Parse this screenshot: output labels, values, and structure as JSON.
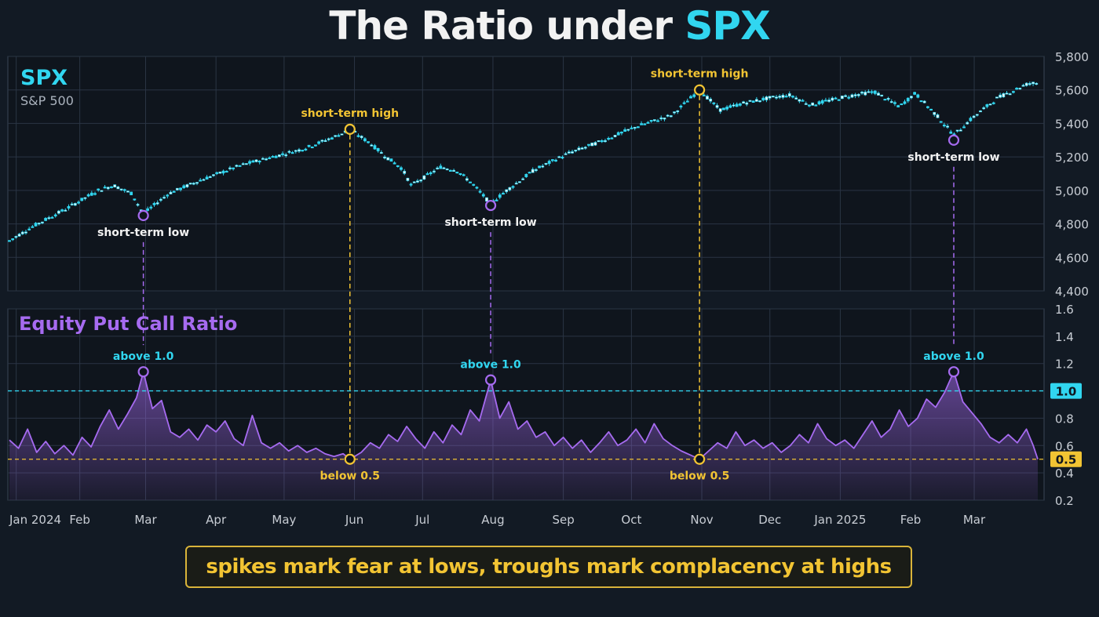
{
  "title": {
    "prefix": "The Ratio under ",
    "highlight": "SPX"
  },
  "caption": "spikes mark fear at lows, troughs mark complacency at highs",
  "colors": {
    "background": "#121a24",
    "grid": "#2a3544",
    "spx_candle": "#31d6f0",
    "ratio_line": "#a66bf0",
    "low_marker": "#a66bf0",
    "high_marker": "#f2c433",
    "threshold_high": "#31d6f0",
    "threshold_low": "#f2c433",
    "text_primary": "#f2f2f2",
    "text_muted": "#aab2bd"
  },
  "chart_data": [
    {
      "type": "candlestick",
      "title": "SPX",
      "subtitle": "S&P 500",
      "y_ticks": [
        4400,
        4600,
        4800,
        5000,
        5200,
        5400,
        5600,
        5800
      ],
      "y_tick_labels": [
        "4,400",
        "4,600",
        "4,800",
        "5,000",
        "5,200",
        "5,400",
        "5,600",
        "5,800"
      ],
      "ylim": [
        4400,
        5800
      ],
      "grid": true,
      "price_path": [
        [
          "2024-01-01",
          4700
        ],
        [
          "2024-01-12",
          4790
        ],
        [
          "2024-01-26",
          4890
        ],
        [
          "2024-02-09",
          5000
        ],
        [
          "2024-02-16",
          5030
        ],
        [
          "2024-02-24",
          4980
        ],
        [
          "2024-02-29",
          4860
        ],
        [
          "2024-03-11",
          4980
        ],
        [
          "2024-03-25",
          5060
        ],
        [
          "2024-04-12",
          5150
        ],
        [
          "2024-04-26",
          5200
        ],
        [
          "2024-05-10",
          5250
        ],
        [
          "2024-05-25",
          5330
        ],
        [
          "2024-05-30",
          5365
        ],
        [
          "2024-06-08",
          5280
        ],
        [
          "2024-06-15",
          5200
        ],
        [
          "2024-06-22",
          5130
        ],
        [
          "2024-06-26",
          5030
        ],
        [
          "2024-07-02",
          5080
        ],
        [
          "2024-07-09",
          5140
        ],
        [
          "2024-07-16",
          5120
        ],
        [
          "2024-07-23",
          5040
        ],
        [
          "2024-07-31",
          4920
        ],
        [
          "2024-08-07",
          5000
        ],
        [
          "2024-08-19",
          5120
        ],
        [
          "2024-09-03",
          5220
        ],
        [
          "2024-09-19",
          5300
        ],
        [
          "2024-10-03",
          5380
        ],
        [
          "2024-10-19",
          5450
        ],
        [
          "2024-10-31",
          5600
        ],
        [
          "2024-11-09",
          5480
        ],
        [
          "2024-11-19",
          5520
        ],
        [
          "2024-11-30",
          5550
        ],
        [
          "2024-12-10",
          5570
        ],
        [
          "2024-12-19",
          5510
        ],
        [
          "2025-01-03",
          5560
        ],
        [
          "2025-01-16",
          5590
        ],
        [
          "2025-01-27",
          5500
        ],
        [
          "2025-02-03",
          5580
        ],
        [
          "2025-02-13",
          5440
        ],
        [
          "2025-02-20",
          5330
        ],
        [
          "2025-02-28",
          5430
        ],
        [
          "2025-03-11",
          5550
        ],
        [
          "2025-03-25",
          5640
        ]
      ],
      "annotations": [
        {
          "label": "short-term low",
          "date": "2024-02-29",
          "value": 4850,
          "kind": "low"
        },
        {
          "label": "short-term high",
          "date": "2024-05-30",
          "value": 5365,
          "kind": "high"
        },
        {
          "label": "short-term low",
          "date": "2024-07-31",
          "value": 4910,
          "kind": "low"
        },
        {
          "label": "short-term high",
          "date": "2024-10-31",
          "value": 5600,
          "kind": "high"
        },
        {
          "label": "short-term low",
          "date": "2025-02-20",
          "value": 5300,
          "kind": "low"
        }
      ]
    },
    {
      "type": "area",
      "title": "Equity Put Call Ratio",
      "y_ticks": [
        0.2,
        0.4,
        0.6,
        0.8,
        1.0,
        1.2,
        1.4,
        1.6
      ],
      "y_tick_labels": [
        "0.2",
        "0.4",
        "0.6",
        "0.8",
        "1.0",
        "1.2",
        "1.4",
        "1.6"
      ],
      "ylim": [
        0.2,
        1.6
      ],
      "grid": true,
      "thresholds": [
        {
          "value": 1.0,
          "label": "1.0",
          "color": "#31d6f0"
        },
        {
          "value": 0.5,
          "label": "0.5",
          "color": "#f2c433"
        }
      ],
      "x_ticks": [
        [
          "2024-01-04",
          "Jan 2024"
        ],
        [
          "2024-02-01",
          "Feb"
        ],
        [
          "2024-03-01",
          "Mar"
        ],
        [
          "2024-04-01",
          "Apr"
        ],
        [
          "2024-05-01",
          "May"
        ],
        [
          "2024-06-01",
          "Jun"
        ],
        [
          "2024-07-01",
          "Jul"
        ],
        [
          "2024-08-01",
          "Aug"
        ],
        [
          "2024-09-01",
          "Sep"
        ],
        [
          "2024-10-01",
          "Oct"
        ],
        [
          "2024-11-01",
          "Nov"
        ],
        [
          "2024-12-01",
          "Dec"
        ],
        [
          "2025-01-01",
          "Jan 2025"
        ],
        [
          "2025-02-01",
          "Feb"
        ],
        [
          "2025-03-01",
          "Mar"
        ]
      ],
      "values": [
        [
          "2024-01-01",
          0.64
        ],
        [
          "2024-01-05",
          0.58
        ],
        [
          "2024-01-09",
          0.72
        ],
        [
          "2024-01-13",
          0.55
        ],
        [
          "2024-01-17",
          0.63
        ],
        [
          "2024-01-21",
          0.54
        ],
        [
          "2024-01-25",
          0.6
        ],
        [
          "2024-01-29",
          0.53
        ],
        [
          "2024-02-02",
          0.66
        ],
        [
          "2024-02-06",
          0.59
        ],
        [
          "2024-02-10",
          0.74
        ],
        [
          "2024-02-14",
          0.86
        ],
        [
          "2024-02-18",
          0.72
        ],
        [
          "2024-02-22",
          0.83
        ],
        [
          "2024-02-26",
          0.95
        ],
        [
          "2024-02-29",
          1.14
        ],
        [
          "2024-03-04",
          0.87
        ],
        [
          "2024-03-08",
          0.93
        ],
        [
          "2024-03-12",
          0.7
        ],
        [
          "2024-03-16",
          0.66
        ],
        [
          "2024-03-20",
          0.72
        ],
        [
          "2024-03-24",
          0.64
        ],
        [
          "2024-03-28",
          0.75
        ],
        [
          "2024-04-01",
          0.7
        ],
        [
          "2024-04-05",
          0.78
        ],
        [
          "2024-04-09",
          0.65
        ],
        [
          "2024-04-13",
          0.6
        ],
        [
          "2024-04-17",
          0.82
        ],
        [
          "2024-04-21",
          0.62
        ],
        [
          "2024-04-25",
          0.58
        ],
        [
          "2024-04-29",
          0.62
        ],
        [
          "2024-05-03",
          0.56
        ],
        [
          "2024-05-07",
          0.6
        ],
        [
          "2024-05-11",
          0.55
        ],
        [
          "2024-05-15",
          0.58
        ],
        [
          "2024-05-19",
          0.54
        ],
        [
          "2024-05-23",
          0.52
        ],
        [
          "2024-05-27",
          0.54
        ],
        [
          "2024-05-30",
          0.5
        ],
        [
          "2024-06-04",
          0.55
        ],
        [
          "2024-06-08",
          0.62
        ],
        [
          "2024-06-12",
          0.58
        ],
        [
          "2024-06-16",
          0.68
        ],
        [
          "2024-06-20",
          0.63
        ],
        [
          "2024-06-24",
          0.74
        ],
        [
          "2024-06-28",
          0.65
        ],
        [
          "2024-07-02",
          0.58
        ],
        [
          "2024-07-06",
          0.7
        ],
        [
          "2024-07-10",
          0.62
        ],
        [
          "2024-07-14",
          0.75
        ],
        [
          "2024-07-18",
          0.68
        ],
        [
          "2024-07-22",
          0.86
        ],
        [
          "2024-07-26",
          0.78
        ],
        [
          "2024-07-31",
          1.08
        ],
        [
          "2024-08-04",
          0.8
        ],
        [
          "2024-08-08",
          0.92
        ],
        [
          "2024-08-12",
          0.72
        ],
        [
          "2024-08-16",
          0.78
        ],
        [
          "2024-08-20",
          0.66
        ],
        [
          "2024-08-24",
          0.7
        ],
        [
          "2024-08-28",
          0.6
        ],
        [
          "2024-09-01",
          0.66
        ],
        [
          "2024-09-05",
          0.58
        ],
        [
          "2024-09-09",
          0.64
        ],
        [
          "2024-09-13",
          0.55
        ],
        [
          "2024-09-17",
          0.62
        ],
        [
          "2024-09-21",
          0.7
        ],
        [
          "2024-09-25",
          0.6
        ],
        [
          "2024-09-29",
          0.64
        ],
        [
          "2024-10-03",
          0.72
        ],
        [
          "2024-10-07",
          0.62
        ],
        [
          "2024-10-11",
          0.76
        ],
        [
          "2024-10-15",
          0.65
        ],
        [
          "2024-10-19",
          0.6
        ],
        [
          "2024-10-23",
          0.56
        ],
        [
          "2024-10-27",
          0.53
        ],
        [
          "2024-10-31",
          0.5
        ],
        [
          "2024-11-04",
          0.56
        ],
        [
          "2024-11-08",
          0.62
        ],
        [
          "2024-11-12",
          0.58
        ],
        [
          "2024-11-16",
          0.7
        ],
        [
          "2024-11-20",
          0.6
        ],
        [
          "2024-11-24",
          0.64
        ],
        [
          "2024-11-28",
          0.58
        ],
        [
          "2024-12-02",
          0.62
        ],
        [
          "2024-12-06",
          0.55
        ],
        [
          "2024-12-10",
          0.6
        ],
        [
          "2024-12-14",
          0.68
        ],
        [
          "2024-12-18",
          0.62
        ],
        [
          "2024-12-22",
          0.76
        ],
        [
          "2024-12-26",
          0.65
        ],
        [
          "2024-12-30",
          0.6
        ],
        [
          "2025-01-03",
          0.64
        ],
        [
          "2025-01-07",
          0.58
        ],
        [
          "2025-01-11",
          0.68
        ],
        [
          "2025-01-15",
          0.78
        ],
        [
          "2025-01-19",
          0.66
        ],
        [
          "2025-01-23",
          0.72
        ],
        [
          "2025-01-27",
          0.86
        ],
        [
          "2025-01-31",
          0.74
        ],
        [
          "2025-02-04",
          0.8
        ],
        [
          "2025-02-08",
          0.94
        ],
        [
          "2025-02-12",
          0.88
        ],
        [
          "2025-02-16",
          0.99
        ],
        [
          "2025-02-20",
          1.14
        ],
        [
          "2025-02-24",
          0.92
        ],
        [
          "2025-02-28",
          0.84
        ],
        [
          "2025-03-04",
          0.76
        ],
        [
          "2025-03-08",
          0.66
        ],
        [
          "2025-03-12",
          0.62
        ],
        [
          "2025-03-16",
          0.68
        ],
        [
          "2025-03-20",
          0.62
        ],
        [
          "2025-03-24",
          0.72
        ],
        [
          "2025-03-27",
          0.6
        ],
        [
          "2025-03-29",
          0.5
        ]
      ],
      "annotations": [
        {
          "label": "above 1.0",
          "date": "2024-02-29",
          "value": 1.14,
          "kind": "low"
        },
        {
          "label": "below 0.5",
          "date": "2024-05-30",
          "value": 0.5,
          "kind": "high"
        },
        {
          "label": "above 1.0",
          "date": "2024-07-31",
          "value": 1.08,
          "kind": "low"
        },
        {
          "label": "below 0.5",
          "date": "2024-10-31",
          "value": 0.5,
          "kind": "high"
        },
        {
          "label": "above 1.0",
          "date": "2025-02-20",
          "value": 1.14,
          "kind": "low"
        }
      ]
    }
  ]
}
